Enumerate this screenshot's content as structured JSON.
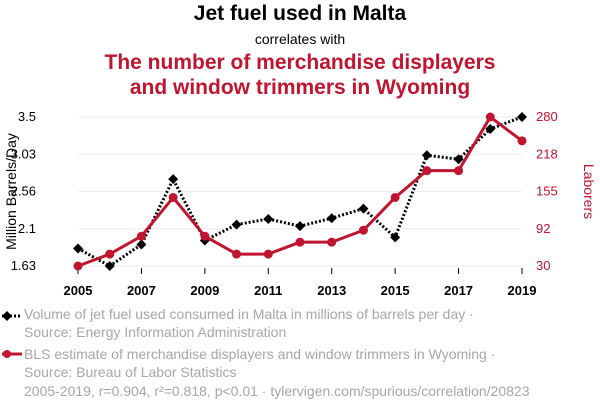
{
  "title": "Jet fuel used in Malta",
  "subtitle": "correlates with",
  "title2_line1": "The number of merchandise displayers",
  "title2_line2": "and window trimmers in Wyoming",
  "colors": {
    "series1": "#000000",
    "series2": "#c0142f",
    "footnote": "#a6a6a6"
  },
  "legend": {
    "s1_line1": "Volume of jet fuel used consumed in Malta in millions of barrels per day ·",
    "s1_line2": "Source: Energy Information Administration",
    "s2_line1": "BLS estimate of merchandise displayers and window trimmers in Wyoming ·",
    "s2_line2": "Source: Bureau of Labor Statistics"
  },
  "footer": "2005-2019, r=0.904, r²=0.818, p<0.01 · tylervigen.com/spurious/correlation/20823",
  "chart_data": {
    "type": "line",
    "x": [
      2005,
      2006,
      2007,
      2008,
      2009,
      2010,
      2011,
      2012,
      2013,
      2014,
      2015,
      2016,
      2017,
      2018,
      2019
    ],
    "x_ticks": [
      "2005",
      "2007",
      "2009",
      "2011",
      "2013",
      "2015",
      "2017",
      "2019"
    ],
    "ylabel_left": "Million Barrels/Day",
    "ylabel_right": "Laborers",
    "yticks_left": [
      "1.63",
      "2.1",
      "2.56",
      "3.03",
      "3.5"
    ],
    "yticks_right": [
      "30",
      "92",
      "155",
      "218",
      "280"
    ],
    "ylim_left": [
      1.63,
      3.5
    ],
    "ylim_right": [
      30,
      280
    ],
    "grid": true,
    "series": [
      {
        "name": "Volume of jet fuel used consumed in Malta in millions of barrels per day",
        "axis": "left",
        "style": "dotted",
        "marker": "diamond",
        "values": [
          1.85,
          1.63,
          1.9,
          2.72,
          1.95,
          2.15,
          2.22,
          2.13,
          2.23,
          2.35,
          1.99,
          3.02,
          2.97,
          3.35,
          3.5
        ]
      },
      {
        "name": "BLS estimate of merchandise displayers and window trimmers in Wyoming",
        "axis": "right",
        "style": "solid",
        "marker": "circle",
        "values": [
          30,
          50,
          80,
          145,
          80,
          50,
          50,
          70,
          70,
          90,
          145,
          190,
          190,
          280,
          240
        ]
      }
    ]
  }
}
